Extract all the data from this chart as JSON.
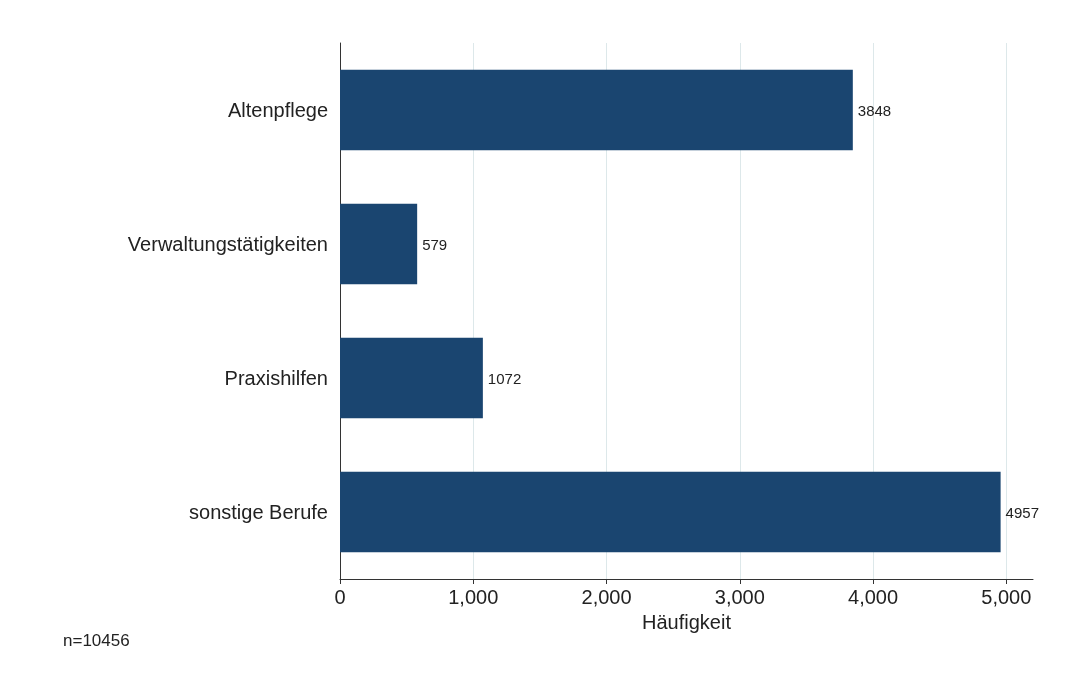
{
  "chart_data": {
    "type": "bar",
    "orientation": "horizontal",
    "categories": [
      "Altenpflege",
      "Verwaltungstätigkeiten",
      "Praxishilfen",
      "sonstige Berufe"
    ],
    "values": [
      3848,
      579,
      1072,
      4957
    ],
    "color": "#1a4570",
    "xlabel": "Häufigkeit",
    "xlim": [
      0,
      5200
    ],
    "xticks": [
      0,
      {
        "value": 1000,
        "label": "1,000"
      },
      {
        "value": 2000,
        "label": "2,000"
      },
      {
        "value": 3000,
        "label": "3,000"
      },
      {
        "value": 4000,
        "label": "4,000"
      },
      {
        "value": 5000,
        "label": "5,000"
      }
    ],
    "grid": "x",
    "data_labels": true,
    "annotations": [
      "n=10456"
    ]
  }
}
